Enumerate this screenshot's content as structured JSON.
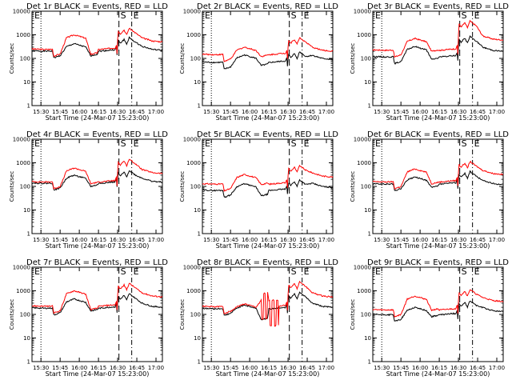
{
  "chart_data": {
    "type": "line",
    "layout": "3x3 grid",
    "common": {
      "xlabel": "Start Time (24-Mar-07 15:23:00)",
      "ylabel": "Counts/sec",
      "xticks": [
        "15:30",
        "15:45",
        "16:00",
        "16:15",
        "16:30",
        "16:45",
        "17:00"
      ],
      "yticks": [
        "1",
        "10",
        "100",
        "1000",
        "10000"
      ],
      "yscale": "log",
      "ylim": [
        1,
        10000
      ],
      "xlim_minutes_after_15:23": [
        0,
        102
      ],
      "series_colors": {
        "events": "#000000",
        "lld": "#ff0000"
      },
      "markers": {
        "dotted_line_at": "15:30",
        "S_line_at": "16:31",
        "E_line_at": "16:41"
      },
      "corner_label": "E",
      "s_label": "S",
      "e_label": "E"
    },
    "panels": [
      {
        "title": "Det 1r BLACK = Events, RED = LLD",
        "base_black": 210,
        "base_red": 250,
        "peak_black": 420,
        "peak_red": 1000,
        "mid_black": 130,
        "mid_red": 150,
        "flare_black": 800,
        "flare_red": 2000,
        "end_black": 220,
        "end_red": 500
      },
      {
        "title": "Det 2r BLACK = Events, RED = LLD",
        "base_black": 70,
        "base_red": 150,
        "peak_black": 140,
        "peak_red": 300,
        "mid_black": 50,
        "mid_red": 120,
        "flare_black": 200,
        "flare_red": 800,
        "end_black": 90,
        "end_red": 200
      },
      {
        "title": "Det 3r BLACK = Events, RED = LLD",
        "base_black": 120,
        "base_red": 230,
        "peak_black": 320,
        "peak_red": 700,
        "mid_black": 90,
        "mid_red": 200,
        "flare_black": 900,
        "flare_red": 4000,
        "end_black": 200,
        "end_red": 600
      },
      {
        "title": "Det 4r BLACK = Events, RED = LLD",
        "base_black": 140,
        "base_red": 160,
        "peak_black": 300,
        "peak_red": 600,
        "mid_black": 100,
        "mid_red": 130,
        "flare_black": 500,
        "flare_red": 1500,
        "end_black": 150,
        "end_red": 350
      },
      {
        "title": "Det 5r BLACK = Events, RED = LLD",
        "base_black": 70,
        "base_red": 130,
        "peak_black": 130,
        "peak_red": 320,
        "mid_black": 40,
        "mid_red": 120,
        "flare_black": 200,
        "flare_red": 800,
        "end_black": 90,
        "end_red": 250
      },
      {
        "title": "Det 6r BLACK = Events, RED = LLD",
        "base_black": 130,
        "base_red": 160,
        "peak_black": 250,
        "peak_red": 550,
        "mid_black": 90,
        "mid_red": 130,
        "flare_black": 450,
        "flare_red": 1200,
        "end_black": 120,
        "end_red": 320
      },
      {
        "title": "Det 7r BLACK = Events, RED = LLD",
        "base_black": 190,
        "base_red": 230,
        "peak_black": 450,
        "peak_red": 1000,
        "mid_black": 140,
        "mid_red": 160,
        "flare_black": 800,
        "flare_red": 2200,
        "end_black": 200,
        "end_red": 550
      },
      {
        "title": "Det 8r BLACK = Events, RED = LLD",
        "base_black": 180,
        "base_red": 220,
        "peak_black": 250,
        "peak_red": 280,
        "mid_black": 60,
        "mid_red": 400,
        "flare_black": 900,
        "flare_red": 2500,
        "end_black": 200,
        "end_red": 550
      },
      {
        "title": "Det 9r BLACK = Events, RED = LLD",
        "base_black": 100,
        "base_red": 160,
        "peak_black": 200,
        "peak_red": 600,
        "mid_black": 80,
        "mid_red": 150,
        "flare_black": 400,
        "flare_red": 1200,
        "end_black": 130,
        "end_red": 350
      }
    ]
  }
}
